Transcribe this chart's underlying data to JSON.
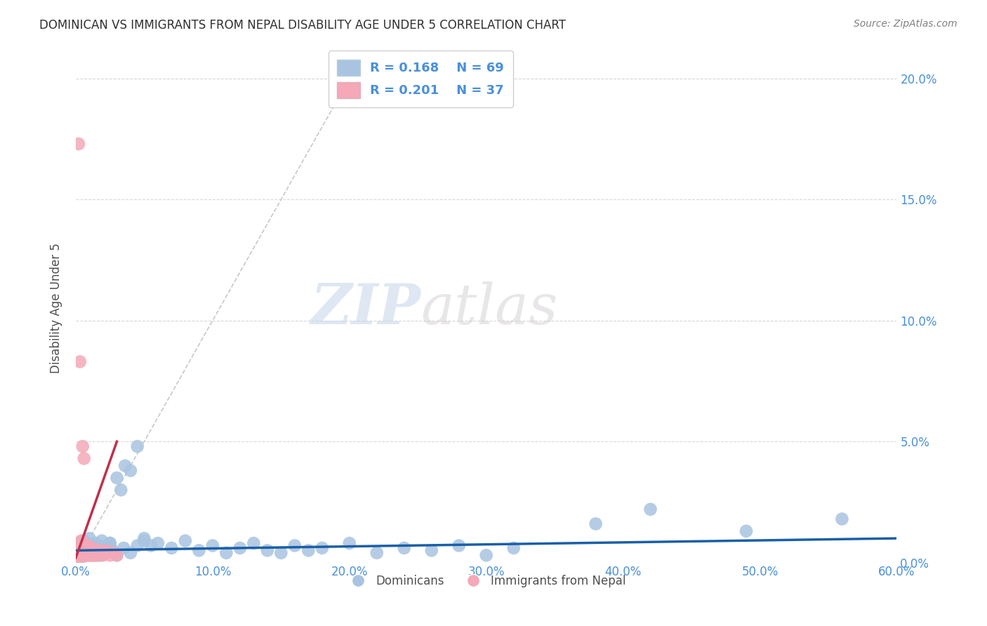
{
  "title": "DOMINICAN VS IMMIGRANTS FROM NEPAL DISABILITY AGE UNDER 5 CORRELATION CHART",
  "source": "Source: ZipAtlas.com",
  "ylabel": "Disability Age Under 5",
  "xlabel": "",
  "watermark_zip": "ZIP",
  "watermark_atlas": "atlas",
  "xlim": [
    0.0,
    0.6
  ],
  "ylim": [
    0.0,
    0.21
  ],
  "xticks": [
    0.0,
    0.1,
    0.2,
    0.3,
    0.4,
    0.5,
    0.6
  ],
  "yticks": [
    0.0,
    0.05,
    0.1,
    0.15,
    0.2
  ],
  "blue_scatter_x": [
    0.003,
    0.004,
    0.005,
    0.006,
    0.007,
    0.008,
    0.009,
    0.01,
    0.011,
    0.012,
    0.013,
    0.014,
    0.015,
    0.016,
    0.017,
    0.018,
    0.019,
    0.02,
    0.021,
    0.022,
    0.023,
    0.025,
    0.027,
    0.03,
    0.033,
    0.036,
    0.04,
    0.045,
    0.05,
    0.055,
    0.06,
    0.07,
    0.08,
    0.09,
    0.1,
    0.11,
    0.12,
    0.13,
    0.14,
    0.15,
    0.16,
    0.17,
    0.18,
    0.2,
    0.22,
    0.24,
    0.26,
    0.28,
    0.3,
    0.32,
    0.004,
    0.006,
    0.008,
    0.01,
    0.012,
    0.014,
    0.016,
    0.018,
    0.02,
    0.025,
    0.03,
    0.035,
    0.04,
    0.045,
    0.05,
    0.38,
    0.42,
    0.49,
    0.56
  ],
  "blue_scatter_y": [
    0.008,
    0.004,
    0.006,
    0.009,
    0.005,
    0.003,
    0.007,
    0.01,
    0.004,
    0.006,
    0.003,
    0.008,
    0.005,
    0.004,
    0.007,
    0.003,
    0.009,
    0.005,
    0.006,
    0.004,
    0.007,
    0.008,
    0.005,
    0.035,
    0.03,
    0.04,
    0.038,
    0.048,
    0.01,
    0.007,
    0.008,
    0.006,
    0.009,
    0.005,
    0.007,
    0.004,
    0.006,
    0.008,
    0.005,
    0.004,
    0.007,
    0.005,
    0.006,
    0.008,
    0.004,
    0.006,
    0.005,
    0.007,
    0.003,
    0.006,
    0.002,
    0.005,
    0.003,
    0.007,
    0.004,
    0.006,
    0.003,
    0.005,
    0.004,
    0.008,
    0.003,
    0.006,
    0.004,
    0.007,
    0.009,
    0.016,
    0.022,
    0.013,
    0.018
  ],
  "pink_scatter_x": [
    0.001,
    0.002,
    0.003,
    0.004,
    0.005,
    0.006,
    0.007,
    0.008,
    0.009,
    0.01,
    0.011,
    0.012,
    0.013,
    0.014,
    0.015,
    0.016,
    0.017,
    0.018,
    0.02,
    0.022,
    0.025,
    0.028,
    0.03,
    0.002,
    0.003,
    0.004,
    0.005,
    0.006,
    0.007,
    0.008,
    0.009,
    0.01,
    0.011,
    0.012,
    0.013,
    0.014,
    0.003
  ],
  "pink_scatter_y": [
    0.004,
    0.003,
    0.006,
    0.005,
    0.048,
    0.043,
    0.005,
    0.007,
    0.006,
    0.003,
    0.004,
    0.003,
    0.005,
    0.003,
    0.004,
    0.003,
    0.005,
    0.004,
    0.003,
    0.005,
    0.003,
    0.004,
    0.003,
    0.173,
    0.083,
    0.009,
    0.006,
    0.004,
    0.003,
    0.007,
    0.003,
    0.005,
    0.003,
    0.006,
    0.004,
    0.003,
    0.002
  ],
  "blue_line_x": [
    0.0,
    0.6
  ],
  "blue_line_y": [
    0.005,
    0.01
  ],
  "pink_line_x": [
    0.0,
    0.03
  ],
  "pink_line_y": [
    0.002,
    0.05
  ],
  "diag_line_x": [
    0.0,
    0.21
  ],
  "diag_line_y": [
    0.0,
    0.21
  ],
  "blue_color": "#a8c4e0",
  "pink_color": "#f4a8b8",
  "blue_line_color": "#1a5fa8",
  "pink_line_color": "#c0304a",
  "diag_color": "#c8c8c8",
  "title_color": "#303030",
  "axis_label_color": "#4a90d9",
  "legend_text_color": "#4a90d9",
  "background_color": "#ffffff",
  "grid_color": "#d8d8d8"
}
